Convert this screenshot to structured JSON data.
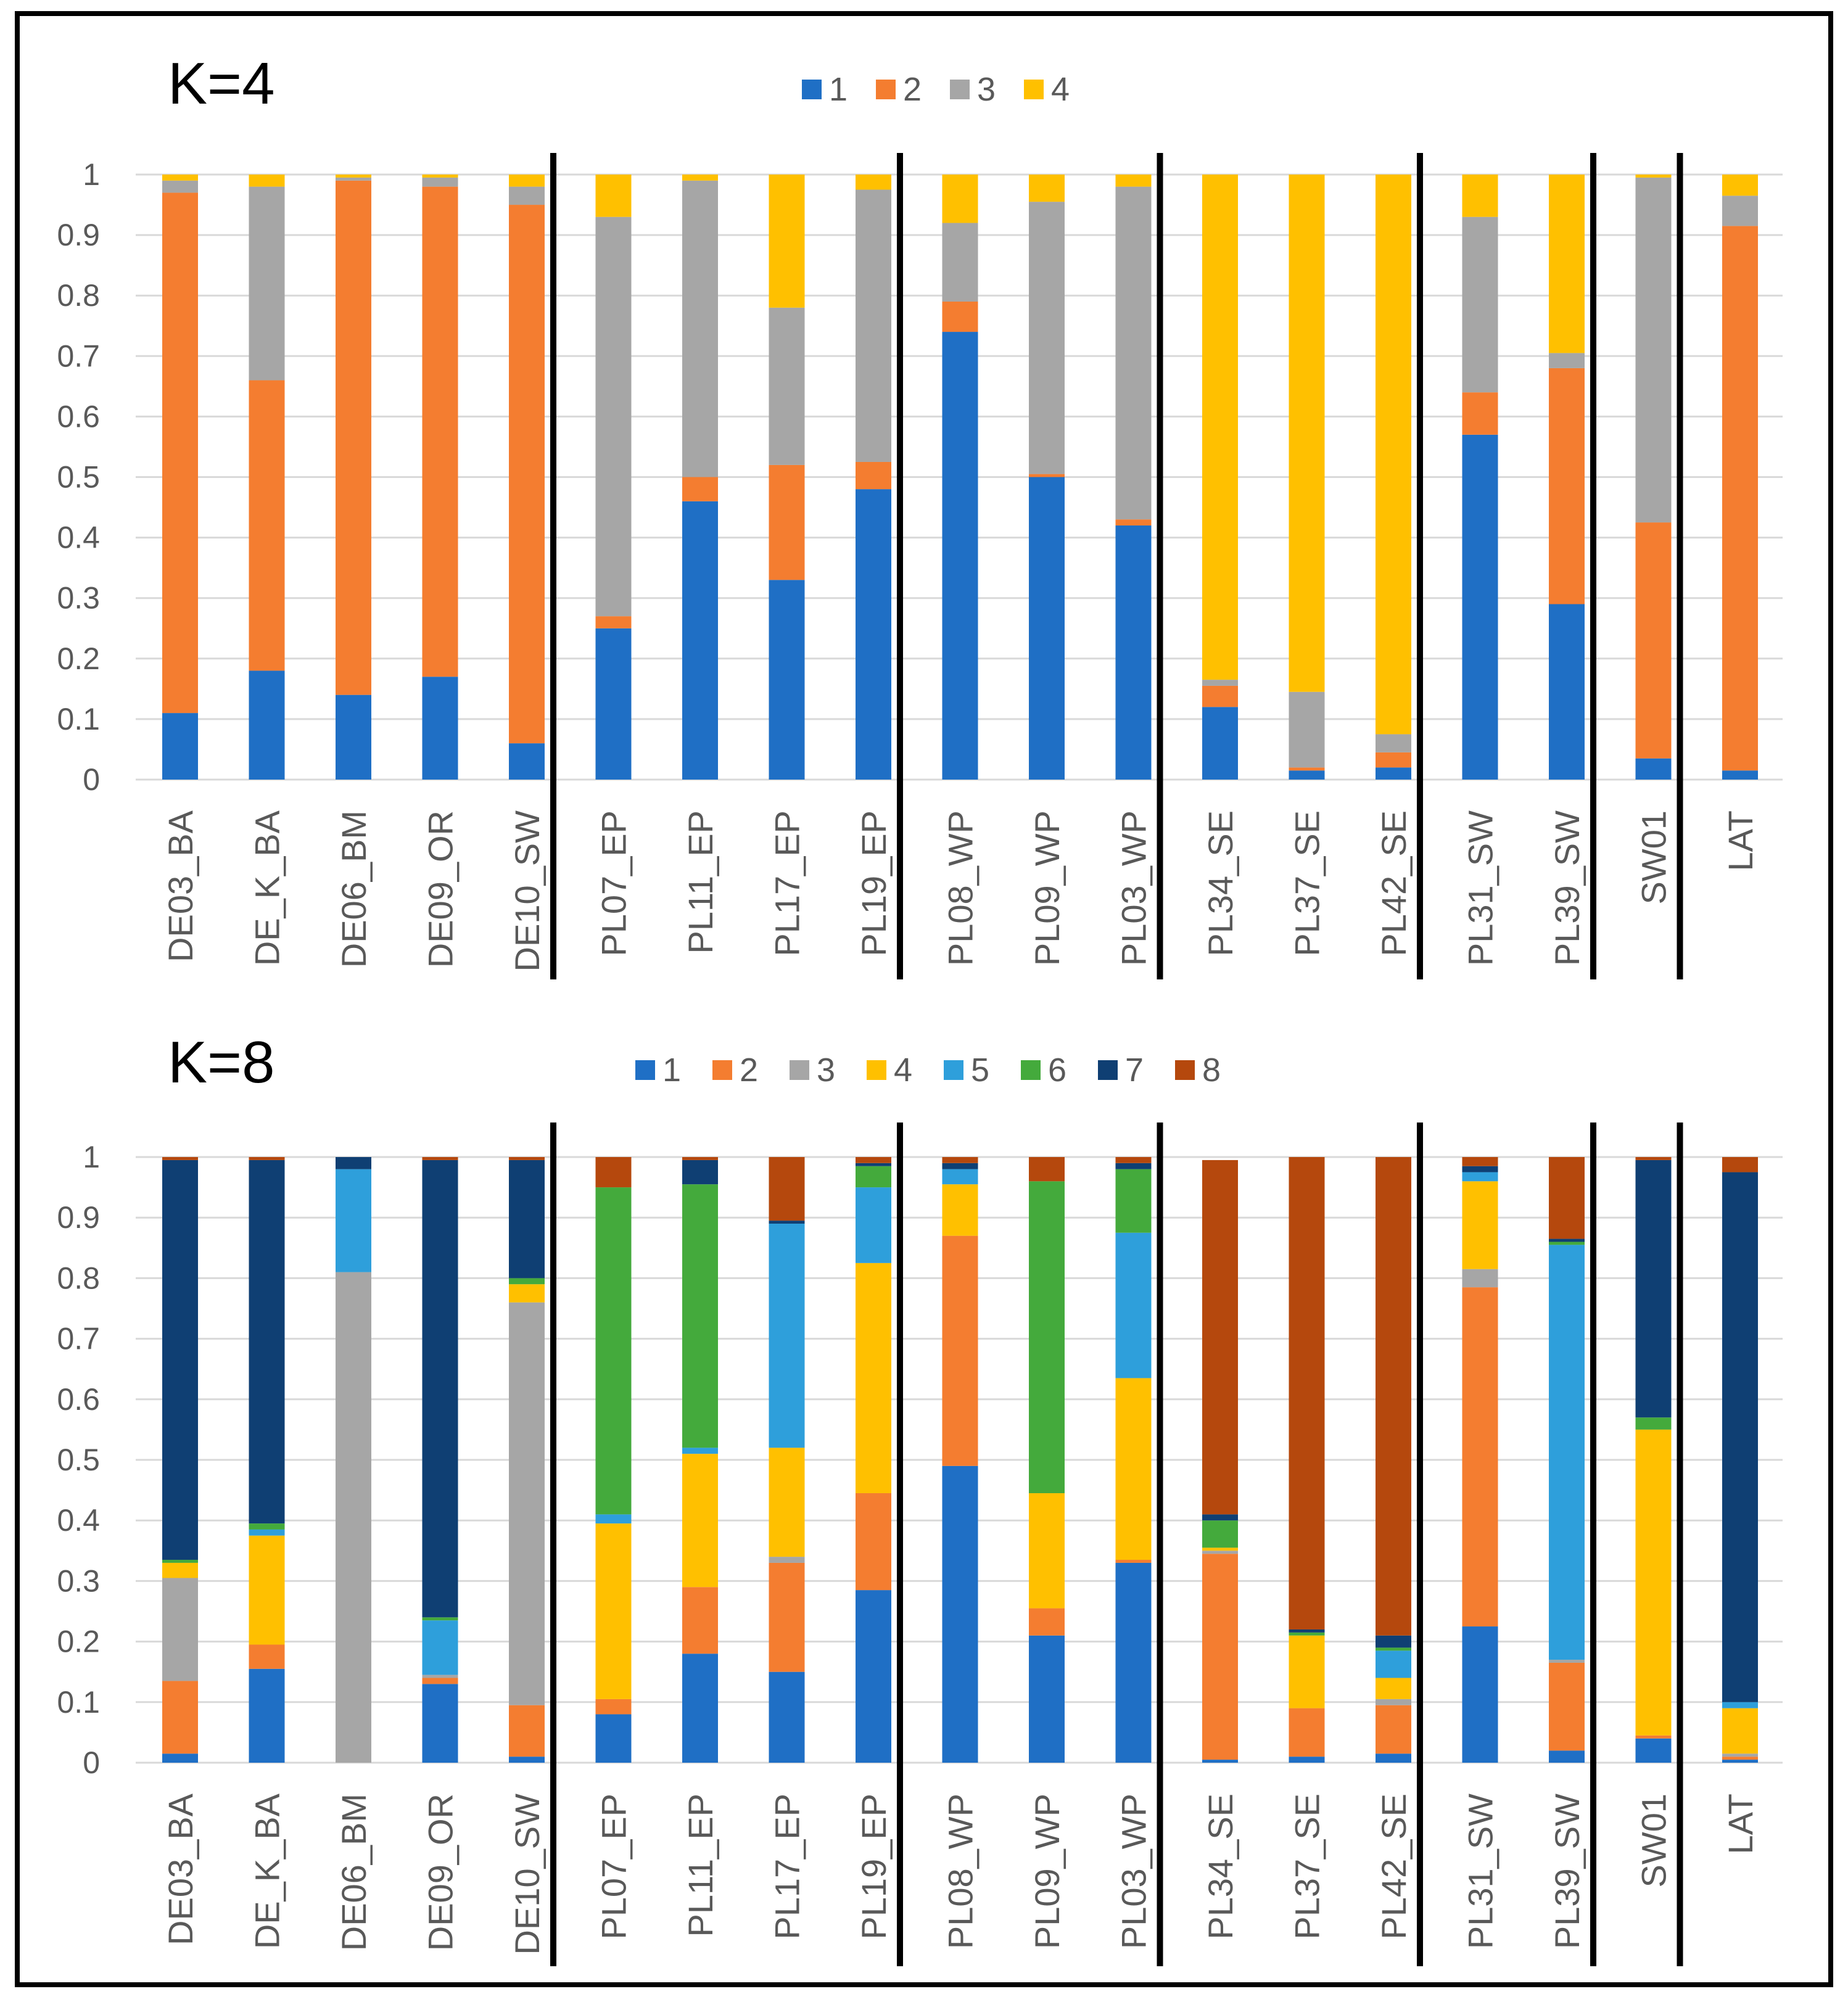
{
  "chart_data": [
    {
      "type": "bar",
      "stacked": true,
      "title": "K=4",
      "legend": [
        "1",
        "2",
        "3",
        "4"
      ],
      "colors": [
        "#1f6fc5",
        "#f47d30",
        "#a6a6a6",
        "#ffc000"
      ],
      "ylim": [
        0,
        1
      ],
      "yticks": [
        "0",
        "0.1",
        "0.2",
        "0.3",
        "0.4",
        "0.5",
        "0.6",
        "0.7",
        "0.8",
        "0.9",
        "1"
      ],
      "categories": [
        "DE03_BA",
        "DE_K_BA",
        "DE06_BM",
        "DE09_OR",
        "DE10_SW",
        "PL07_EP",
        "PL11_EP",
        "PL17_EP",
        "PL19_EP",
        "PL08_WP",
        "PL09_WP",
        "PL03_WP",
        "PL34_SE",
        "PL37_SE",
        "PL42_SE",
        "PL31_SW",
        "PL39_SW",
        "SW01",
        "LAT"
      ],
      "group_sizes": [
        5,
        4,
        3,
        3,
        2,
        1,
        1
      ],
      "series": [
        {
          "name": "1",
          "values": [
            0.11,
            0.18,
            0.14,
            0.17,
            0.06,
            0.25,
            0.46,
            0.33,
            0.48,
            0.74,
            0.5,
            0.42,
            0.12,
            0.015,
            0.02,
            0.57,
            0.29,
            0.035,
            0.015
          ]
        },
        {
          "name": "2",
          "values": [
            0.86,
            0.48,
            0.85,
            0.81,
            0.89,
            0.02,
            0.04,
            0.19,
            0.045,
            0.05,
            0.005,
            0.01,
            0.035,
            0.005,
            0.025,
            0.07,
            0.39,
            0.39,
            0.9
          ]
        },
        {
          "name": "3",
          "values": [
            0.02,
            0.32,
            0.005,
            0.015,
            0.03,
            0.66,
            0.49,
            0.26,
            0.45,
            0.13,
            0.45,
            0.55,
            0.01,
            0.125,
            0.03,
            0.29,
            0.025,
            0.57,
            0.05
          ]
        },
        {
          "name": "4",
          "values": [
            0.01,
            0.02,
            0.005,
            0.005,
            0.02,
            0.07,
            0.01,
            0.22,
            0.025,
            0.08,
            0.045,
            0.02,
            0.835,
            0.855,
            0.925,
            0.07,
            0.295,
            0.005,
            0.035
          ]
        }
      ]
    },
    {
      "type": "bar",
      "stacked": true,
      "title": "K=8",
      "legend": [
        "1",
        "2",
        "3",
        "4",
        "5",
        "6",
        "7",
        "8"
      ],
      "colors": [
        "#1f6fc5",
        "#f47d30",
        "#a6a6a6",
        "#ffc000",
        "#2e9fdb",
        "#44aa3c",
        "#0f3f73",
        "#b5480d"
      ],
      "ylim": [
        0,
        1
      ],
      "yticks": [
        "0",
        "0.1",
        "0.2",
        "0.3",
        "0.4",
        "0.5",
        "0.6",
        "0.7",
        "0.8",
        "0.9",
        "1"
      ],
      "categories": [
        "DE03_BA",
        "DE_K_BA",
        "DE06_BM",
        "DE09_OR",
        "DE10_SW",
        "PL07_EP",
        "PL11_EP",
        "PL17_EP",
        "PL19_EP",
        "PL08_WP",
        "PL09_WP",
        "PL03_WP",
        "PL34_SE",
        "PL37_SE",
        "PL42_SE",
        "PL31_SW",
        "PL39_SW",
        "SW01",
        "LAT"
      ],
      "group_sizes": [
        5,
        4,
        3,
        3,
        2,
        1,
        1
      ],
      "series": [
        {
          "name": "1",
          "values": [
            0.015,
            0.155,
            0.0,
            0.13,
            0.01,
            0.08,
            0.18,
            0.15,
            0.285,
            0.49,
            0.21,
            0.33,
            0.005,
            0.01,
            0.015,
            0.225,
            0.02,
            0.04,
            0.005
          ]
        },
        {
          "name": "2",
          "values": [
            0.12,
            0.04,
            0.0,
            0.01,
            0.085,
            0.025,
            0.11,
            0.18,
            0.16,
            0.38,
            0.045,
            0.005,
            0.34,
            0.08,
            0.08,
            0.56,
            0.145,
            0.005,
            0.005
          ]
        },
        {
          "name": "3",
          "values": [
            0.17,
            0.0,
            0.81,
            0.005,
            0.665,
            0.0,
            0.0,
            0.01,
            0.0,
            0.0,
            0.0,
            0.0,
            0.005,
            0.0,
            0.01,
            0.03,
            0.005,
            0.0,
            0.005
          ]
        },
        {
          "name": "4",
          "values": [
            0.025,
            0.18,
            0.0,
            0.0,
            0.03,
            0.29,
            0.22,
            0.18,
            0.38,
            0.085,
            0.19,
            0.3,
            0.005,
            0.12,
            0.035,
            0.145,
            0.0,
            0.505,
            0.075
          ]
        },
        {
          "name": "5",
          "values": [
            0.0,
            0.01,
            0.17,
            0.09,
            0.0,
            0.015,
            0.01,
            0.37,
            0.125,
            0.025,
            0.0,
            0.24,
            0.0,
            0.0,
            0.045,
            0.015,
            0.685,
            0.0,
            0.01
          ]
        },
        {
          "name": "6",
          "values": [
            0.005,
            0.01,
            0.0,
            0.005,
            0.01,
            0.54,
            0.435,
            0.0,
            0.035,
            0.0,
            0.515,
            0.105,
            0.045,
            0.005,
            0.005,
            0.0,
            0.005,
            0.02,
            0.0
          ]
        },
        {
          "name": "7",
          "values": [
            0.66,
            0.6,
            0.02,
            0.755,
            0.195,
            0.0,
            0.04,
            0.005,
            0.005,
            0.01,
            0.0,
            0.01,
            0.01,
            0.005,
            0.02,
            0.01,
            0.005,
            0.425,
            0.875
          ]
        },
        {
          "name": "8",
          "values": [
            0.005,
            0.005,
            0.0,
            0.005,
            0.005,
            0.05,
            0.005,
            0.105,
            0.01,
            0.01,
            0.04,
            0.01,
            0.585,
            0.78,
            0.79,
            0.015,
            0.135,
            0.005,
            0.025
          ]
        }
      ]
    }
  ]
}
